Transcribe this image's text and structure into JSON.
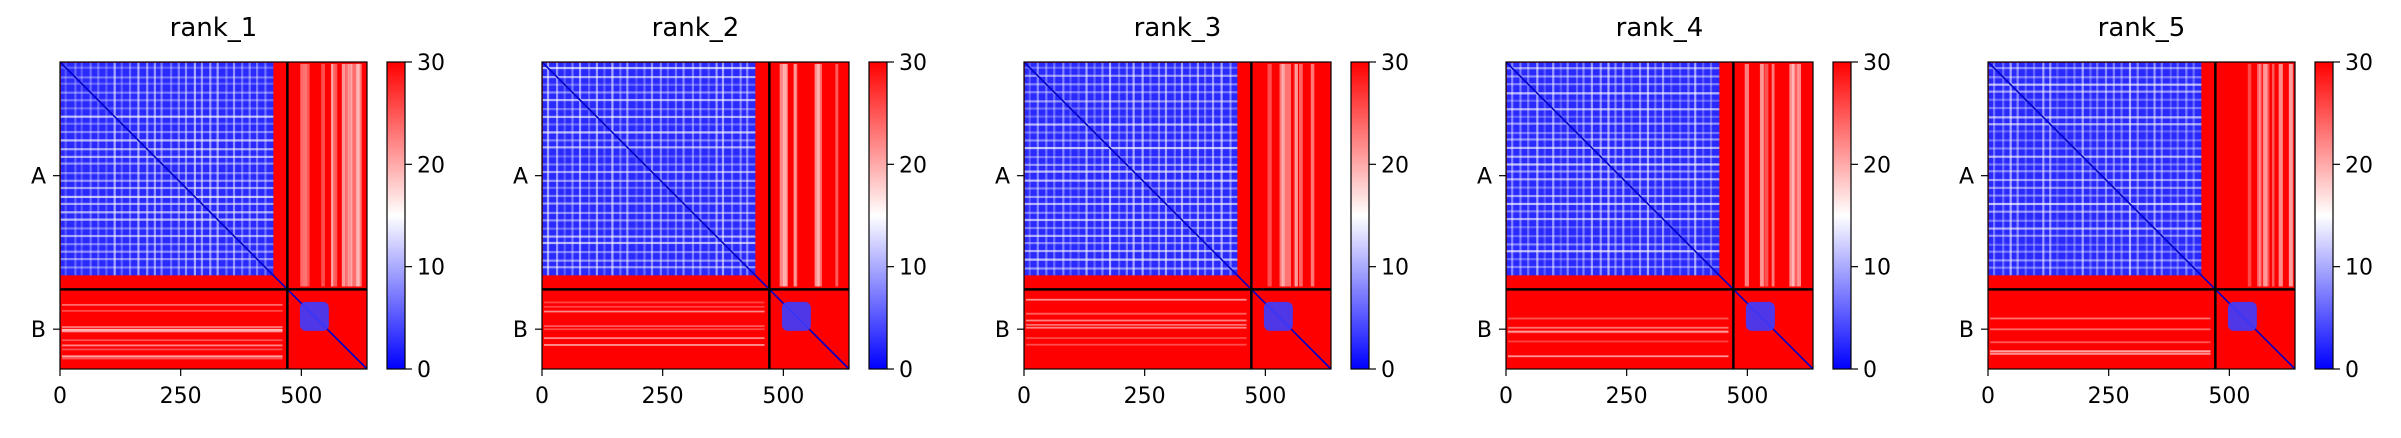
{
  "figure": {
    "colormap": {
      "low": "#0000ff",
      "mid": "#ffffff",
      "high": "#ff0000"
    }
  },
  "chart_data": [
    {
      "type": "heatmap",
      "title": "rank_1",
      "x_ticks": [
        0,
        250,
        500
      ],
      "xlim": [
        0,
        636
      ],
      "chain_boundary": 471,
      "chain_labels": [
        "A",
        "B"
      ],
      "colorbar": {
        "ticks": [
          0,
          10,
          20,
          30
        ],
        "range": [
          0,
          30
        ]
      }
    },
    {
      "type": "heatmap",
      "title": "rank_2",
      "x_ticks": [
        0,
        250,
        500
      ],
      "xlim": [
        0,
        636
      ],
      "chain_boundary": 471,
      "chain_labels": [
        "A",
        "B"
      ],
      "colorbar": {
        "ticks": [
          0,
          10,
          20,
          30
        ],
        "range": [
          0,
          30
        ]
      }
    },
    {
      "type": "heatmap",
      "title": "rank_3",
      "x_ticks": [
        0,
        250,
        500
      ],
      "xlim": [
        0,
        636
      ],
      "chain_boundary": 471,
      "chain_labels": [
        "A",
        "B"
      ],
      "colorbar": {
        "ticks": [
          0,
          10,
          20,
          30
        ],
        "range": [
          0,
          30
        ]
      }
    },
    {
      "type": "heatmap",
      "title": "rank_4",
      "x_ticks": [
        0,
        250,
        500
      ],
      "xlim": [
        0,
        636
      ],
      "chain_boundary": 471,
      "chain_labels": [
        "A",
        "B"
      ],
      "colorbar": {
        "ticks": [
          0,
          10,
          20,
          30
        ],
        "range": [
          0,
          30
        ]
      }
    },
    {
      "type": "heatmap",
      "title": "rank_5",
      "x_ticks": [
        0,
        250,
        500
      ],
      "xlim": [
        0,
        636
      ],
      "chain_boundary": 471,
      "chain_labels": [
        "A",
        "B"
      ],
      "colorbar": {
        "ticks": [
          0,
          10,
          20,
          30
        ],
        "range": [
          0,
          30
        ]
      }
    }
  ]
}
